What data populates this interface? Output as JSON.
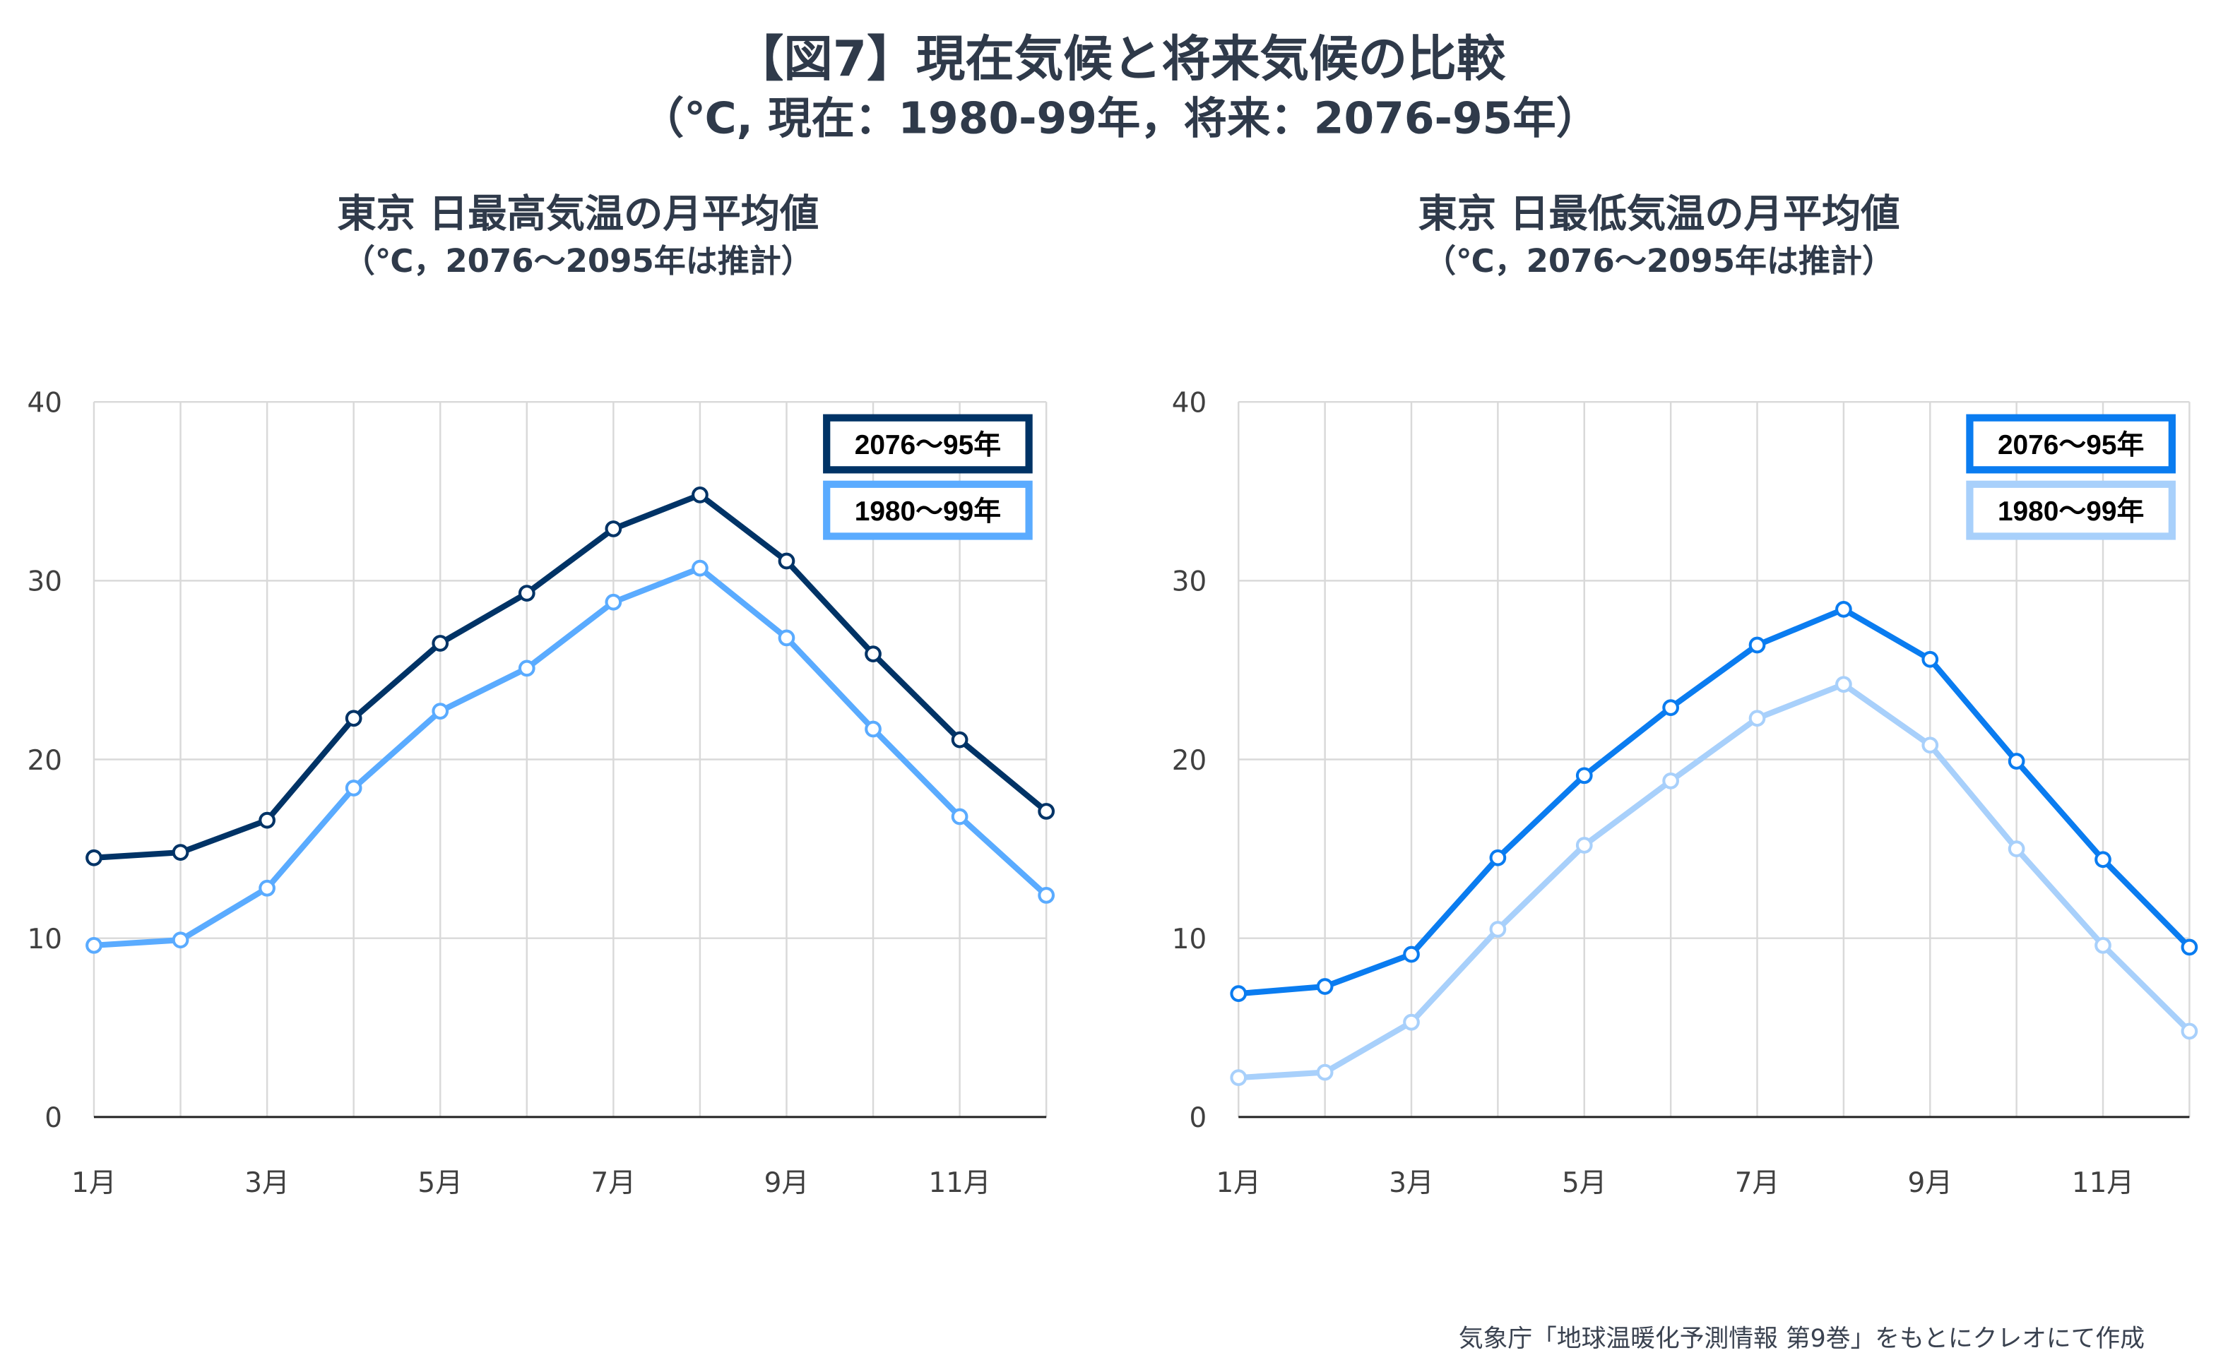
{
  "title": "【図7】現在気候と将来気候の比較",
  "subtitle": "（℃, 現在：1980-99年，将来：2076-95年）",
  "source": "気象庁「地球温暖化予測情報 第9巻」をもとにクレオにて作成",
  "chart_data": [
    {
      "type": "line",
      "title": "東京 日最高気温の月平均値",
      "subtitle": "（℃，2076～2095年は推計）",
      "categories": [
        "1月",
        "2月",
        "3月",
        "4月",
        "5月",
        "6月",
        "7月",
        "8月",
        "9月",
        "10月",
        "11月",
        "12月"
      ],
      "tick_labels": [
        "1月",
        "3月",
        "5月",
        "7月",
        "9月",
        "11月"
      ],
      "y_ticks": [
        0,
        10,
        20,
        30,
        40
      ],
      "ylim": [
        0,
        40
      ],
      "grid": true,
      "legend_placement": "top-right",
      "series": [
        {
          "name": "2076～95年",
          "color": "#003366",
          "values": [
            14.5,
            14.8,
            16.6,
            22.3,
            26.5,
            29.3,
            32.9,
            34.8,
            31.1,
            25.9,
            21.1,
            17.1
          ]
        },
        {
          "name": "1980～99年",
          "color": "#5aabff",
          "values": [
            9.6,
            9.9,
            12.8,
            18.4,
            22.7,
            25.1,
            28.8,
            30.7,
            26.8,
            21.7,
            16.8,
            12.4
          ]
        }
      ]
    },
    {
      "type": "line",
      "title": "東京 日最低気温の月平均値",
      "subtitle": "（℃，2076～2095年は推計）",
      "categories": [
        "1月",
        "2月",
        "3月",
        "4月",
        "5月",
        "6月",
        "7月",
        "8月",
        "9月",
        "10月",
        "11月",
        "12月"
      ],
      "tick_labels": [
        "1月",
        "3月",
        "5月",
        "7月",
        "9月",
        "11月"
      ],
      "y_ticks": [
        0,
        10,
        20,
        30,
        40
      ],
      "ylim": [
        0,
        40
      ],
      "grid": true,
      "legend_placement": "top-right",
      "series": [
        {
          "name": "2076～95年",
          "color": "#0a7cf0",
          "values": [
            6.9,
            7.3,
            9.1,
            14.5,
            19.1,
            22.9,
            26.4,
            28.4,
            25.6,
            19.9,
            14.4,
            9.5
          ]
        },
        {
          "name": "1980～99年",
          "color": "#a8d0fb",
          "values": [
            2.2,
            2.5,
            5.3,
            10.5,
            15.2,
            18.8,
            22.3,
            24.2,
            20.8,
            15.0,
            9.6,
            4.8
          ]
        }
      ]
    }
  ]
}
